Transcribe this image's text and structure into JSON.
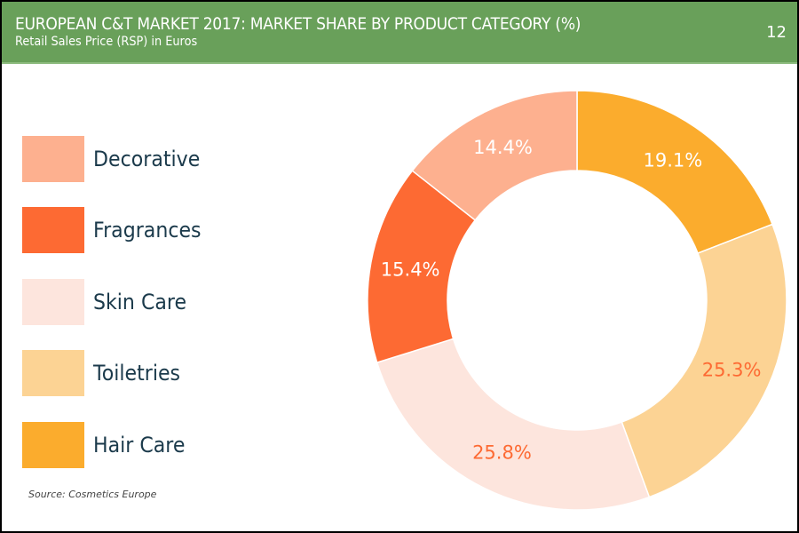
{
  "header": {
    "title": "EUROPEAN C&T MARKET 2017: MARKET SHARE BY PRODUCT CATEGORY (%)",
    "subtitle": "Retail Sales Price (RSP) in Euros",
    "page_number": "12"
  },
  "source": "Source: Cosmetics Europe",
  "colors": {
    "header_bg": "#69a05a",
    "legend_text": "#1b3a4b"
  },
  "chart_data": {
    "type": "pie",
    "variant": "donut",
    "title": "EUROPEAN C&T MARKET 2017: MARKET SHARE BY PRODUCT CATEGORY (%)",
    "subtitle": "Retail Sales Price (RSP) in Euros",
    "legend_position": "left",
    "start_angle": "top",
    "direction": "clockwise",
    "legend": [
      {
        "label": "Decorative",
        "color": "#fdb08f"
      },
      {
        "label": "Fragrances",
        "color": "#fd6a33"
      },
      {
        "label": "Skin Care",
        "color": "#fde5dd"
      },
      {
        "label": "Toiletries",
        "color": "#fcd394"
      },
      {
        "label": "Hair Care",
        "color": "#fbac2d"
      }
    ],
    "slices": [
      {
        "label": "Hair Care",
        "value": 19.1,
        "display": "19.1%",
        "color": "#fbac2d",
        "label_color": "#ffffff"
      },
      {
        "label": "Toiletries",
        "value": 25.3,
        "display": "25.3%",
        "color": "#fcd394",
        "label_color": "#fd6a33"
      },
      {
        "label": "Skin Care",
        "value": 25.8,
        "display": "25.8%",
        "color": "#fde5dd",
        "label_color": "#fd6a33"
      },
      {
        "label": "Fragrances",
        "value": 15.4,
        "display": "15.4%",
        "color": "#fd6a33",
        "label_color": "#ffffff"
      },
      {
        "label": "Decorative",
        "value": 14.4,
        "display": "14.4%",
        "color": "#fdb08f",
        "label_color": "#ffffff"
      }
    ]
  }
}
